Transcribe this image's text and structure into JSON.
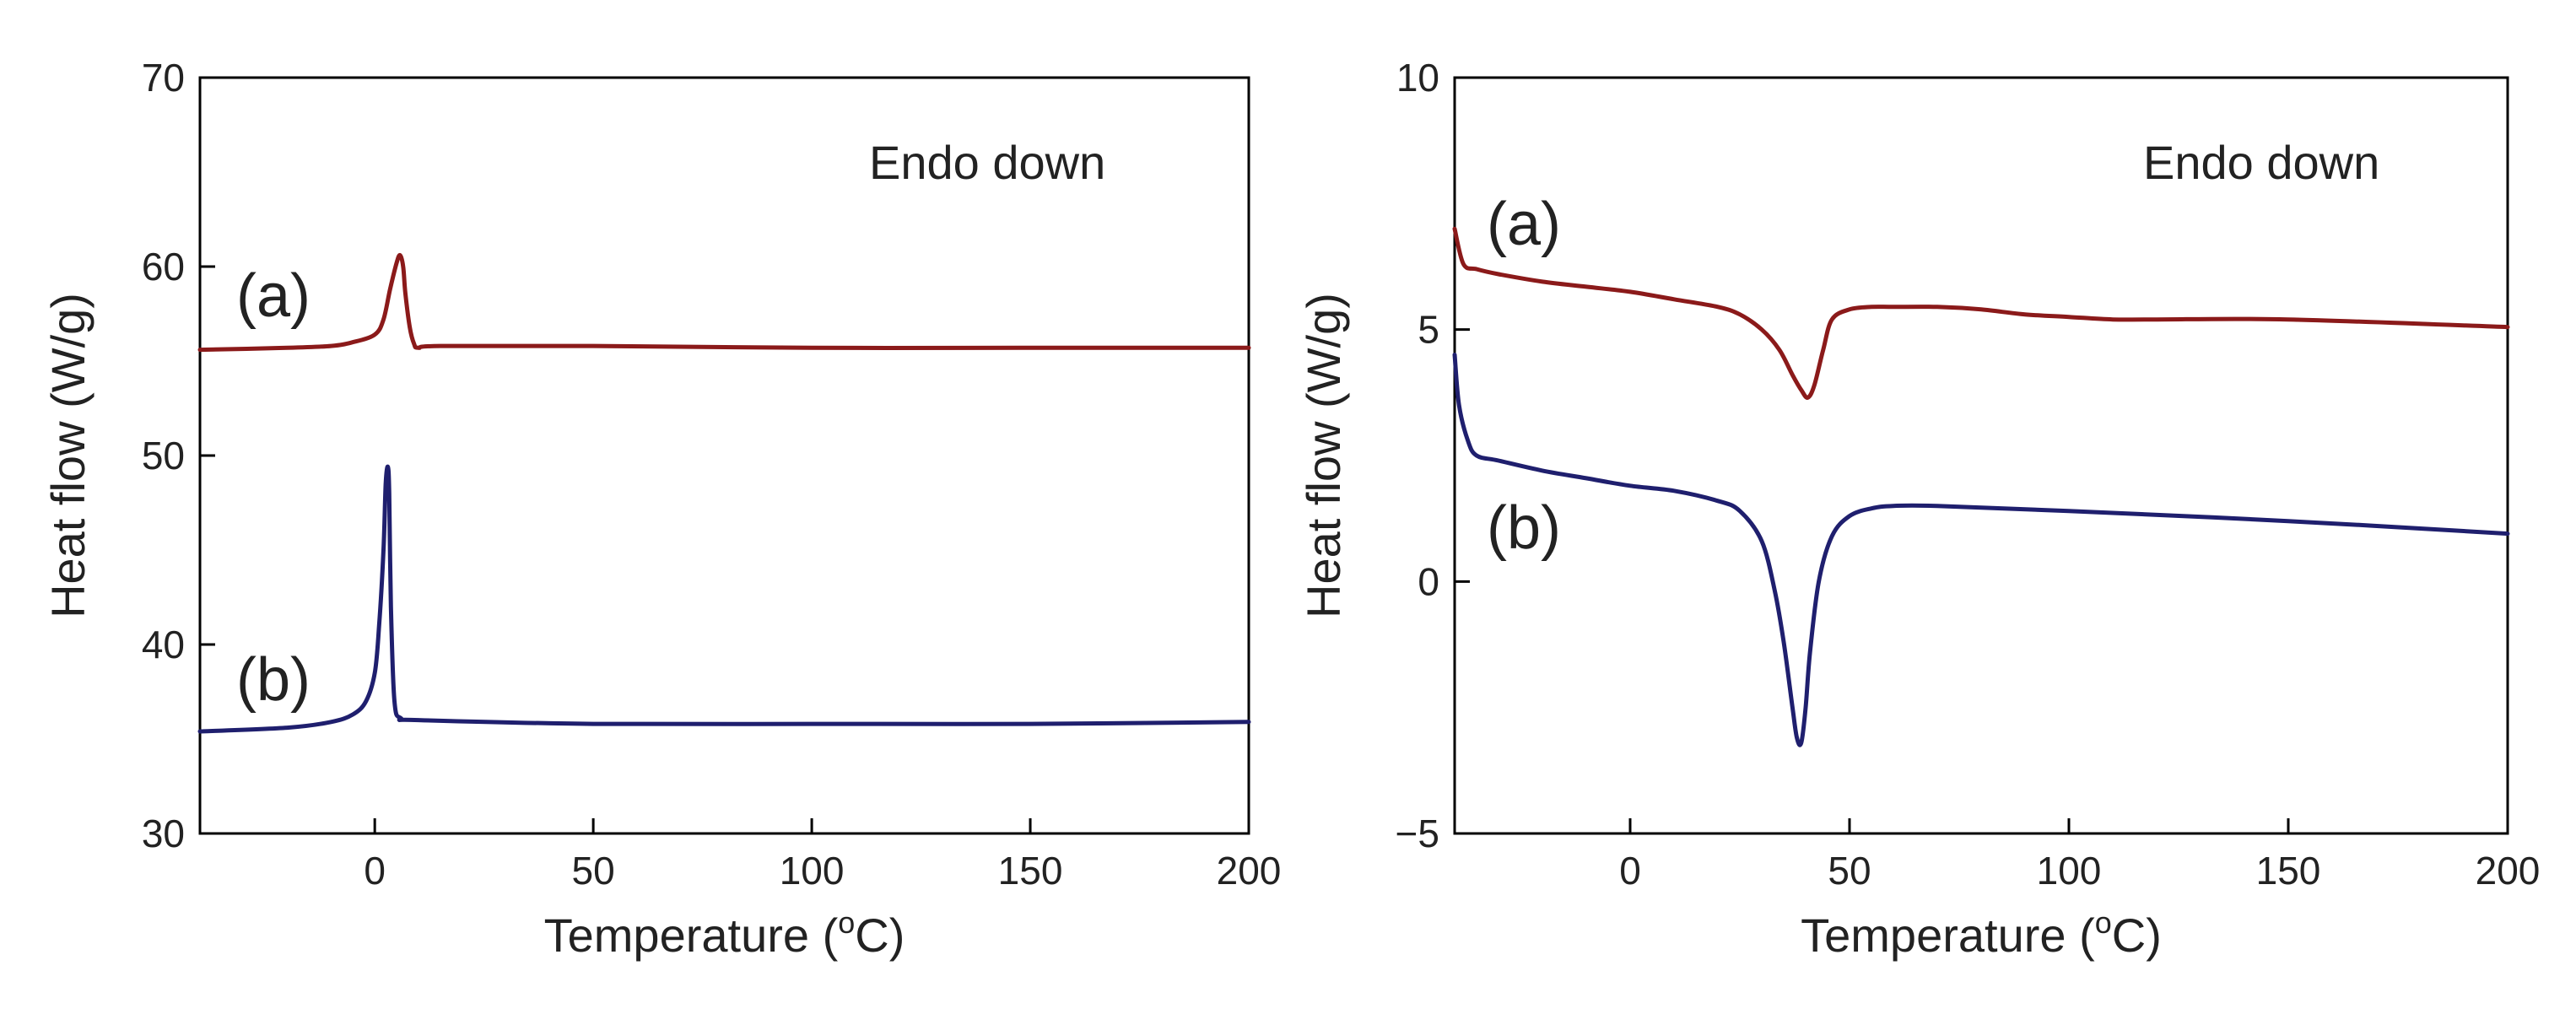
{
  "chart_data": [
    {
      "type": "line",
      "xlabel_main": "Temperature (",
      "xlabel_sup": "o",
      "xlabel_end": "C)",
      "ylabel": "Heat flow (W/g)",
      "annotation": "Endo down",
      "xlim": [
        -40,
        200
      ],
      "ylim": [
        30,
        70
      ],
      "xticks": [
        0,
        50,
        100,
        150,
        200
      ],
      "xtick_labels": [
        "0",
        "50",
        "100",
        "150",
        "200"
      ],
      "yticks": [
        30,
        40,
        50,
        60,
        70
      ],
      "ytick_labels": [
        "30",
        "40",
        "50",
        "60",
        "70"
      ],
      "series": [
        {
          "name": "(a)",
          "color": "#8b1a1a",
          "x": [
            -40,
            -20,
            -10,
            -5,
            0,
            2,
            3.5,
            5,
            5.8,
            6.5,
            7,
            8,
            9,
            10,
            15,
            50,
            100,
            150,
            200
          ],
          "y": [
            55.6,
            55.7,
            55.8,
            56.0,
            56.4,
            57.2,
            58.8,
            60.2,
            60.6,
            60.0,
            58.6,
            56.8,
            55.9,
            55.7,
            55.8,
            55.8,
            55.7,
            55.7,
            55.7
          ]
        },
        {
          "name": "(b)",
          "color": "#1f1f6e",
          "x": [
            -40,
            -20,
            -10,
            -5,
            -2,
            0,
            1,
            2,
            2.5,
            3,
            3.3,
            3.7,
            4.5,
            6,
            10,
            50,
            100,
            150,
            200
          ],
          "y": [
            35.4,
            35.6,
            35.9,
            36.3,
            37.0,
            38.5,
            41.0,
            45.0,
            48.5,
            49.4,
            48.0,
            42.0,
            37.0,
            36.1,
            36.0,
            35.8,
            35.8,
            35.8,
            35.9
          ]
        }
      ]
    },
    {
      "type": "line",
      "xlabel_main": "Temperature (",
      "xlabel_sup": "o",
      "xlabel_end": "C)",
      "ylabel": "Heat flow (W/g)",
      "annotation": "Endo down",
      "xlim": [
        -40,
        200
      ],
      "ylim": [
        -5,
        10
      ],
      "xticks": [
        0,
        50,
        100,
        150,
        200
      ],
      "xtick_labels": [
        "0",
        "50",
        "100",
        "150",
        "200"
      ],
      "yticks": [
        -5,
        0,
        5,
        10
      ],
      "ytick_labels": [
        "−5",
        "0",
        "5",
        "10"
      ],
      "series": [
        {
          "name": "(a)",
          "color": "#8b1a1a",
          "x": [
            -40,
            -38,
            -35,
            -30,
            -20,
            -10,
            0,
            10,
            20,
            25,
            30,
            34,
            37,
            39,
            40.5,
            42,
            44,
            46,
            50,
            55,
            60,
            70,
            80,
            90,
            100,
            110,
            120,
            150,
            200
          ],
          "y": [
            7.0,
            6.3,
            6.2,
            6.1,
            5.95,
            5.85,
            5.75,
            5.6,
            5.45,
            5.3,
            5.0,
            4.6,
            4.1,
            3.8,
            3.65,
            3.9,
            4.6,
            5.2,
            5.4,
            5.45,
            5.45,
            5.45,
            5.4,
            5.3,
            5.25,
            5.2,
            5.2,
            5.2,
            5.05
          ]
        },
        {
          "name": "(b)",
          "color": "#1f1f6e",
          "x": [
            -40,
            -39,
            -37,
            -35,
            -30,
            -20,
            -10,
            0,
            10,
            20,
            25,
            30,
            33,
            35,
            37,
            38,
            39,
            40,
            41,
            43,
            46,
            50,
            55,
            60,
            70,
            100,
            150,
            200
          ],
          "y": [
            4.5,
            3.5,
            2.8,
            2.5,
            2.4,
            2.2,
            2.05,
            1.9,
            1.8,
            1.6,
            1.4,
            0.8,
            -0.2,
            -1.2,
            -2.5,
            -3.1,
            -3.2,
            -2.5,
            -1.4,
            0.0,
            0.9,
            1.3,
            1.45,
            1.5,
            1.5,
            1.4,
            1.2,
            0.95
          ]
        }
      ]
    }
  ]
}
